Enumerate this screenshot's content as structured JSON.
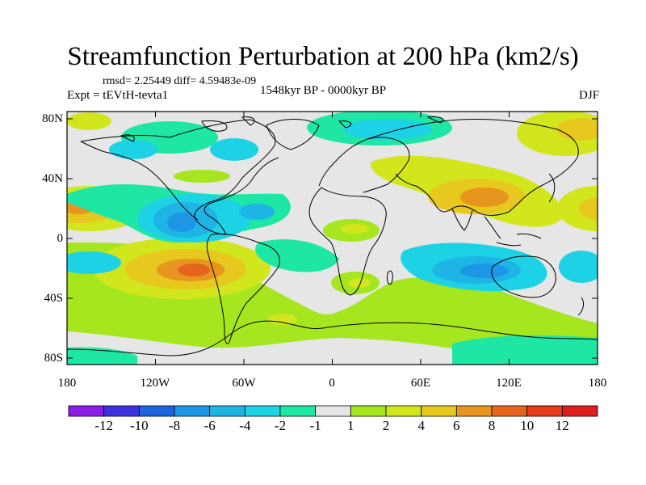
{
  "title": "Streamfunction Perturbation at 200 hPa (km2/s)",
  "stats": "rmsd= 2.25449 diff= 4.59483e-09",
  "experiment": "Expt = tEVtH-tevta1",
  "period": "1548kyr BP - 0000kyr BP",
  "season": "DJF",
  "lat_labels": [
    "80N",
    "40N",
    "0",
    "40S",
    "80S"
  ],
  "lon_labels": [
    "180",
    "120W",
    "60W",
    "0",
    "60E",
    "120E",
    "180"
  ],
  "colorbar": {
    "labels": [
      "-12",
      "-10",
      "-8",
      "-6",
      "-4",
      "-2",
      "-1",
      "1",
      "2",
      "4",
      "6",
      "8",
      "10",
      "12"
    ],
    "colors": [
      "#8a1ee6",
      "#3c32dc",
      "#1e64dc",
      "#1e96e6",
      "#1eb4e6",
      "#1ed2e6",
      "#1ee6a5",
      "#e6e6e6",
      "#a5e61e",
      "#d2e61e",
      "#e6c81e",
      "#e6961e",
      "#e6641e",
      "#e63c1e",
      "#dc1e1e"
    ]
  },
  "colors": {
    "ocean_neutral": "#e6e6e6",
    "coast": "#000000"
  }
}
